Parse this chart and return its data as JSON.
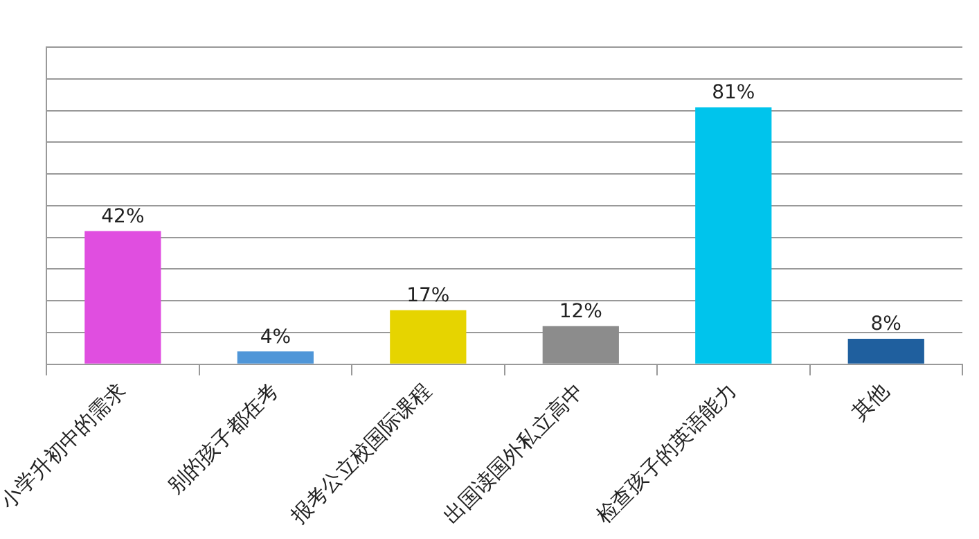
{
  "chart_data": {
    "type": "bar",
    "categories": [
      "小学升初中的需求",
      "别的孩子都在考",
      "报考公立校国际课程",
      "出国读国外私立高中",
      "检查孩子的英语能力",
      "其他"
    ],
    "values": [
      42,
      4,
      17,
      12,
      81,
      8
    ],
    "value_labels": [
      "42%",
      "4%",
      "17%",
      "12%",
      "81%",
      "8%"
    ],
    "colors": [
      "#e04ee0",
      "#4f96d8",
      "#e6d400",
      "#8c8c8c",
      "#00c4ec",
      "#1f5f9e"
    ],
    "ylim": [
      0,
      100
    ],
    "yticks": [
      {
        "value": 0,
        "label": null
      },
      {
        "value": 10,
        "label": null
      },
      {
        "value": 20,
        "label": null
      },
      {
        "value": 30,
        "label": null
      },
      {
        "value": 40,
        "label": null
      },
      {
        "value": 50,
        "label": null
      },
      {
        "value": 60,
        "label": null
      },
      {
        "value": 70,
        "label": null
      },
      {
        "value": 80,
        "label": null
      },
      {
        "value": 90,
        "label": null
      },
      {
        "value": 100,
        "label": null
      }
    ],
    "grid": "y",
    "tick_labels": "x",
    "legend": false
  }
}
